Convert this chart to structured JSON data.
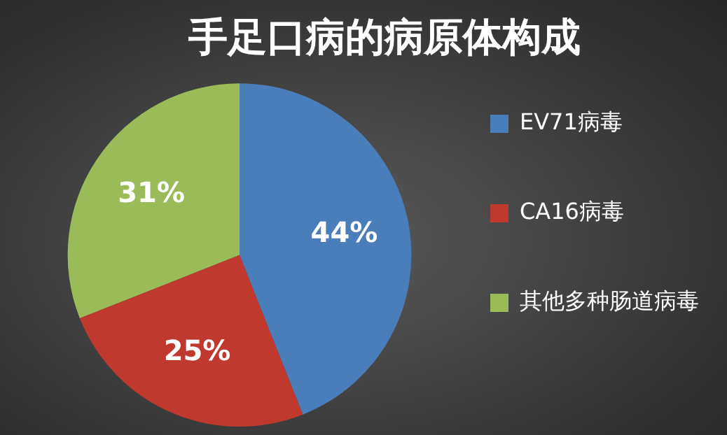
{
  "chart_data": {
    "type": "pie",
    "title": "手足口病的病原体构成",
    "categories": [
      "EV71病毒",
      "CA16病毒",
      "其他多种肠道病毒"
    ],
    "values": [
      44,
      25,
      31
    ],
    "colors": [
      "#4a7ebb",
      "#c0392f",
      "#9bbb59"
    ],
    "legend": "right",
    "value_labels": [
      "44%",
      "25%",
      "31%"
    ]
  }
}
